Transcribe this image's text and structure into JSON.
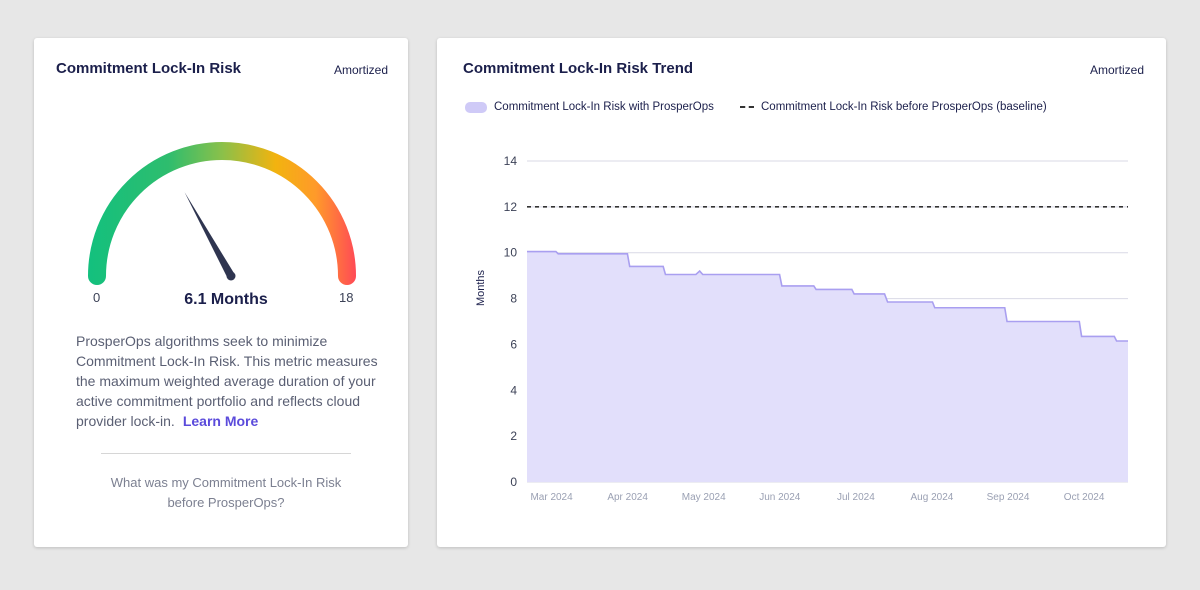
{
  "left_card": {
    "title": "Commitment Lock-In Risk",
    "tag": "Amortized",
    "gauge": {
      "min_label": "0",
      "max_label": "18",
      "min": 0,
      "max": 18,
      "value": 6.1,
      "value_label": "6.1 Months",
      "colors": [
        "#13c07e",
        "#2ebd6e",
        "#8ac04a",
        "#f2b30f",
        "#ff9a2a",
        "#ff4a56"
      ]
    },
    "description": "ProsperOps algorithms seek to minimize Commitment Lock-In Risk. This metric measures the maximum weighted average duration of your active commitment portfolio and reflects cloud provider lock-in.",
    "learn_more": "Learn More",
    "before_link": "What was my Commitment Lock-In Risk before ProsperOps?"
  },
  "right_card": {
    "title": "Commitment Lock-In Risk Trend",
    "tag": "Amortized",
    "legend": [
      {
        "label": "Commitment Lock-In Risk with ProsperOps",
        "icon": "area-swatch",
        "color": "#cfcaf7"
      },
      {
        "label": "Commitment Lock-In Risk before ProsperOps (baseline)",
        "icon": "dashed-line",
        "color": "#333333"
      }
    ]
  },
  "chart_data": {
    "type": "area",
    "title": "Commitment Lock-In Risk Trend",
    "ylabel": "Months",
    "ylim": [
      0,
      14
    ],
    "yticks": [
      0,
      2,
      4,
      6,
      8,
      10,
      12,
      14
    ],
    "x_ticks": [
      "Mar 2024",
      "Apr 2024",
      "May 2024",
      "Jun 2024",
      "Jul 2024",
      "Aug 2024",
      "Sep 2024",
      "Oct 2024"
    ],
    "xlim": [
      0,
      7.9
    ],
    "grid": true,
    "legend_position": "top-left",
    "series": [
      {
        "name": "Commitment Lock-In Risk with ProsperOps",
        "color": "#a99ff0",
        "fill": "#e2dffb",
        "x": [
          0,
          0.38,
          0.41,
          1.32,
          1.35,
          1.79,
          1.82,
          2.22,
          2.27,
          2.31,
          2.35,
          3.32,
          3.35,
          3.77,
          3.8,
          4.27,
          4.3,
          4.7,
          4.74,
          5.33,
          5.36,
          6.28,
          6.31,
          7.26,
          7.29,
          7.72,
          7.75,
          7.9
        ],
        "y": [
          10.05,
          10.05,
          9.95,
          9.95,
          9.4,
          9.4,
          9.05,
          9.05,
          9.2,
          9.05,
          9.05,
          9.05,
          8.55,
          8.55,
          8.4,
          8.4,
          8.2,
          8.2,
          7.85,
          7.85,
          7.6,
          7.6,
          7.0,
          7.0,
          6.35,
          6.35,
          6.15,
          6.15
        ]
      },
      {
        "name": "Commitment Lock-In Risk before ProsperOps (baseline)",
        "color": "#333333",
        "style": "dashed",
        "x": [
          0,
          7.9
        ],
        "y": [
          12,
          12
        ]
      }
    ]
  }
}
